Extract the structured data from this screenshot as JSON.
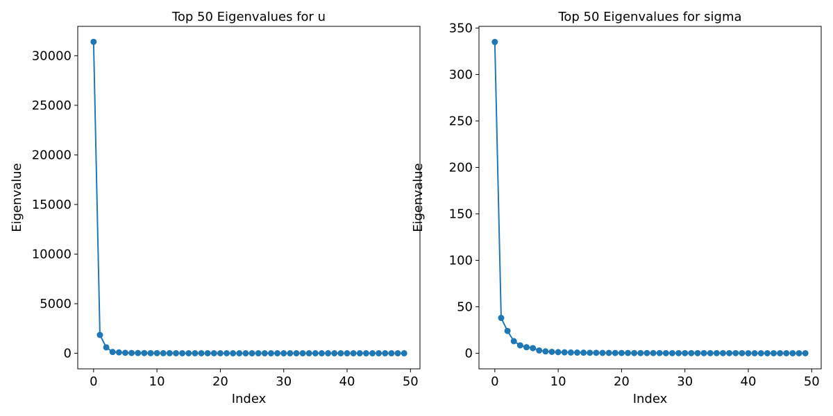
{
  "chart_data": [
    {
      "type": "line",
      "title": "Top 50 Eigenvalues for u",
      "xlabel": "Index",
      "ylabel": "Eigenvalue",
      "xlim": [
        -2.5,
        51.5
      ],
      "ylim": [
        -1570,
        32960
      ],
      "xticks": [
        0,
        10,
        20,
        30,
        40,
        50
      ],
      "yticks": [
        0,
        5000,
        10000,
        15000,
        20000,
        25000,
        30000
      ],
      "marker": "circle",
      "color": "#1f77b4",
      "grid": false,
      "x": [
        0,
        1,
        2,
        3,
        4,
        5,
        6,
        7,
        8,
        9,
        10,
        11,
        12,
        13,
        14,
        15,
        16,
        17,
        18,
        19,
        20,
        21,
        22,
        23,
        24,
        25,
        26,
        27,
        28,
        29,
        30,
        31,
        32,
        33,
        34,
        35,
        36,
        37,
        38,
        39,
        40,
        41,
        42,
        43,
        44,
        45,
        46,
        47,
        48,
        49
      ],
      "values": [
        31400,
        1850,
        600,
        130,
        90,
        50,
        30,
        25,
        20,
        15,
        12,
        10,
        8,
        7,
        6,
        5,
        5,
        4,
        4,
        3,
        3,
        3,
        2,
        2,
        2,
        2,
        2,
        1,
        1,
        1,
        1,
        1,
        1,
        1,
        1,
        1,
        1,
        1,
        1,
        1,
        0,
        0,
        0,
        0,
        0,
        0,
        0,
        0,
        0,
        0
      ]
    },
    {
      "type": "line",
      "title": "Top 50 Eigenvalues for sigma",
      "xlabel": "Index",
      "ylabel": "Eigenvalue",
      "xlim": [
        -2.5,
        51.5
      ],
      "ylim": [
        -16.8,
        351.8
      ],
      "xticks": [
        0,
        10,
        20,
        30,
        40,
        50
      ],
      "yticks": [
        0,
        50,
        100,
        150,
        200,
        250,
        300,
        350
      ],
      "marker": "circle",
      "color": "#1f77b4",
      "grid": false,
      "x": [
        0,
        1,
        2,
        3,
        4,
        5,
        6,
        7,
        8,
        9,
        10,
        11,
        12,
        13,
        14,
        15,
        16,
        17,
        18,
        19,
        20,
        21,
        22,
        23,
        24,
        25,
        26,
        27,
        28,
        29,
        30,
        31,
        32,
        33,
        34,
        35,
        36,
        37,
        38,
        39,
        40,
        41,
        42,
        43,
        44,
        45,
        46,
        47,
        48,
        49
      ],
      "values": [
        335,
        38,
        24,
        13,
        8.5,
        6.5,
        5.5,
        3,
        2,
        1.5,
        1.2,
        1,
        0.8,
        0.7,
        0.6,
        0.5,
        0.5,
        0.4,
        0.4,
        0.3,
        0.3,
        0.3,
        0.2,
        0.2,
        0.2,
        0.2,
        0.2,
        0.1,
        0.1,
        0.1,
        0.1,
        0.1,
        0.1,
        0.1,
        0.1,
        0.1,
        0.1,
        0.1,
        0.1,
        0.1,
        0,
        0,
        0,
        0,
        0,
        0,
        0,
        0,
        0,
        0
      ]
    }
  ]
}
